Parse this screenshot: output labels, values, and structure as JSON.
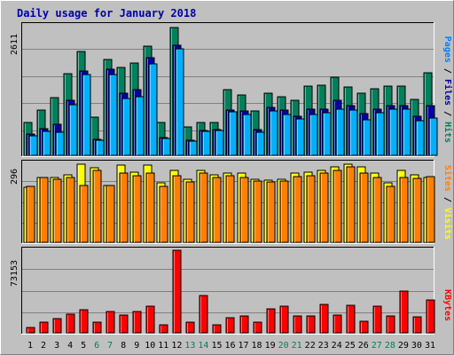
{
  "title": "Daily usage for January 2018",
  "chart_data": [
    {
      "type": "bar",
      "panel": "hits_files_pages",
      "ymax_label": "2611",
      "ylim": [
        0,
        2611
      ],
      "categories": [
        "1",
        "2",
        "3",
        "4",
        "5",
        "6",
        "7",
        "8",
        "9",
        "10",
        "11",
        "12",
        "13",
        "14",
        "15",
        "16",
        "17",
        "18",
        "19",
        "20",
        "21",
        "22",
        "23",
        "24",
        "25",
        "26",
        "27",
        "28",
        "29",
        "30",
        "31"
      ],
      "right_labels": [
        {
          "text": "Pages",
          "color": "#0080ff"
        },
        {
          "text": " / ",
          "color": "#000000"
        },
        {
          "text": "Files",
          "color": "#0000a8"
        },
        {
          "text": " / ",
          "color": "#000000"
        },
        {
          "text": "Hits",
          "color": "#00805c"
        }
      ],
      "series": [
        {
          "name": "Hits",
          "color": "#00805c",
          "values": [
            650,
            900,
            1150,
            1640,
            2070,
            760,
            1910,
            1750,
            1840,
            2190,
            650,
            2560,
            560,
            650,
            660,
            1310,
            1200,
            880,
            1240,
            1180,
            1110,
            1380,
            1400,
            1570,
            1370,
            1250,
            1330,
            1380,
            1380,
            1120,
            1650
          ]
        },
        {
          "name": "Files",
          "color": "#0000a8",
          "values": [
            420,
            530,
            630,
            1100,
            1680,
            320,
            1720,
            1250,
            1320,
            1960,
            360,
            2210,
            310,
            500,
            510,
            900,
            880,
            510,
            960,
            900,
            780,
            930,
            930,
            1100,
            1000,
            840,
            920,
            990,
            1000,
            780,
            1000
          ]
        },
        {
          "name": "Pages",
          "color": "#00b0ff",
          "values": [
            390,
            480,
            460,
            1010,
            1620,
            300,
            1620,
            1140,
            1180,
            1830,
            340,
            2140,
            280,
            480,
            490,
            870,
            820,
            460,
            880,
            820,
            720,
            820,
            850,
            930,
            900,
            710,
            850,
            930,
            920,
            690,
            740
          ]
        }
      ]
    },
    {
      "type": "bar",
      "panel": "visits_sites",
      "ymax_label": "296",
      "ylim": [
        0,
        296
      ],
      "categories": [
        "1",
        "2",
        "3",
        "4",
        "5",
        "6",
        "7",
        "8",
        "9",
        "10",
        "11",
        "12",
        "13",
        "14",
        "15",
        "16",
        "17",
        "18",
        "19",
        "20",
        "21",
        "22",
        "23",
        "24",
        "25",
        "26",
        "27",
        "28",
        "29",
        "30",
        "31"
      ],
      "right_labels": [
        {
          "text": "Sites",
          "color": "#ff8000"
        },
        {
          "text": " / ",
          "color": "#000000"
        },
        {
          "text": "Visits",
          "color": "#ffff00"
        }
      ],
      "series": [
        {
          "name": "Visits",
          "color": "#ffff00",
          "values": [
            205,
            240,
            240,
            250,
            290,
            275,
            210,
            285,
            260,
            285,
            220,
            265,
            235,
            265,
            250,
            255,
            255,
            235,
            230,
            235,
            255,
            260,
            265,
            280,
            290,
            280,
            255,
            220,
            265,
            250,
            240
          ]
        },
        {
          "name": "Sites",
          "color": "#ff8000",
          "values": [
            208,
            240,
            232,
            240,
            212,
            265,
            212,
            258,
            248,
            258,
            208,
            248,
            222,
            257,
            240,
            248,
            240,
            228,
            225,
            227,
            243,
            248,
            257,
            268,
            280,
            257,
            240,
            208,
            240,
            238,
            243
          ]
        }
      ]
    },
    {
      "type": "bar",
      "panel": "kbytes",
      "ymax_label": "73153",
      "ylim": [
        0,
        73153
      ],
      "categories": [
        "1",
        "2",
        "3",
        "4",
        "5",
        "6",
        "7",
        "8",
        "9",
        "10",
        "11",
        "12",
        "13",
        "14",
        "15",
        "16",
        "17",
        "18",
        "19",
        "20",
        "21",
        "22",
        "23",
        "24",
        "25",
        "26",
        "27",
        "28",
        "29",
        "30",
        "31"
      ],
      "right_labels": [
        {
          "text": "KBytes",
          "color": "#ff0000"
        }
      ],
      "series": [
        {
          "name": "KBytes",
          "color": "#ff0000",
          "values": [
            4900,
            9700,
            12100,
            16600,
            20400,
            9100,
            18600,
            15800,
            18600,
            23000,
            6800,
            72000,
            9600,
            32800,
            7100,
            13000,
            15000,
            9200,
            20800,
            23300,
            14900,
            14900,
            24800,
            15400,
            24400,
            10200,
            23000,
            14900,
            36200,
            14000,
            29100
          ]
        }
      ]
    }
  ],
  "day_labels": {
    "weekend_days": [
      6,
      7,
      13,
      14,
      20,
      21,
      27,
      28
    ],
    "weekday_color": "#000000",
    "weekend_color": "#00805c"
  }
}
